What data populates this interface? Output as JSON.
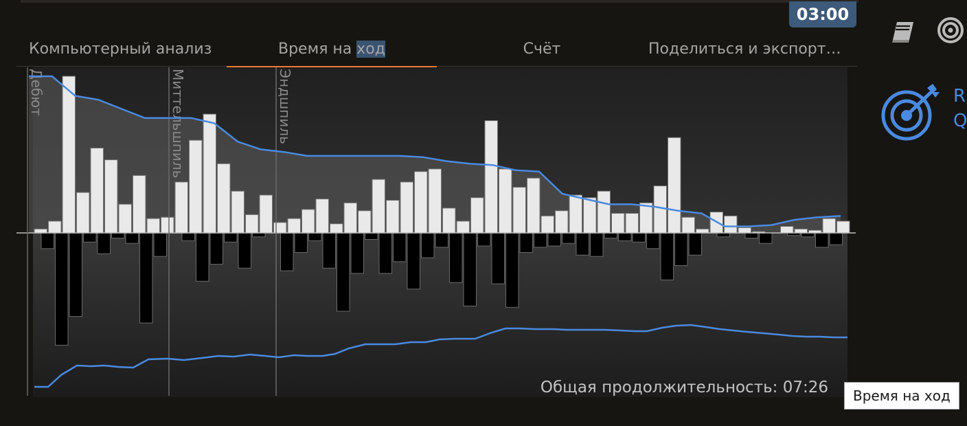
{
  "clock": "03:00",
  "tabs": {
    "computer_analysis": "Компьютерный анализ",
    "move_time_prefix": "Время на ",
    "move_time_highlight": "ход",
    "score": "Счёт",
    "share": "Поделиться и экспортировать"
  },
  "phases": [
    "Дебют",
    "Миттельшпиль",
    "Эндшпиль"
  ],
  "total_duration": "Общая продолжительность: 07:26",
  "tooltip": "Время на ход",
  "right_rail": {
    "line1": "R",
    "line2": "Q"
  },
  "colors": {
    "accent": "#ea7a2c",
    "clock_bg": "#3d5a7a",
    "line": "#4a8ae0",
    "white_bar": "#e9e9e9",
    "black_bar": "#000000"
  },
  "chart_data": {
    "type": "bar",
    "description_note": "",
    "white_bars": [
      0.3,
      0.9,
      12,
      3.1,
      6.5,
      5.6,
      2.2,
      4.4,
      1.1,
      1.2,
      3.9,
      7.1,
      9.1,
      5.3,
      3.2,
      1.4,
      2.9,
      0.8,
      1.1,
      1.8,
      2.6,
      0.7,
      2.3,
      1.7,
      4.1,
      2.5,
      3.9,
      4.7,
      4.9,
      1.9,
      0.9,
      2.7,
      8.6,
      4.9,
      3.5,
      4.2,
      1.3,
      1.7,
      2.9,
      2.7,
      3.2,
      1.5,
      1.5,
      2.3,
      3.6,
      7.3,
      1.2,
      0.3,
      1.6,
      1.3,
      0.4,
      0.1,
      0,
      0.5,
      0.3,
      0.2,
      1.1,
      0.9
    ],
    "black_bars": [
      1.2,
      8.6,
      6.4,
      0.7,
      1.6,
      0.4,
      0.8,
      6.9,
      1.8,
      0,
      0.6,
      3.7,
      2.4,
      0.7,
      2.7,
      0.3,
      0,
      2.9,
      1.5,
      0.6,
      2.7,
      6,
      3.1,
      0.5,
      3.1,
      2.2,
      4.3,
      1.9,
      1.1,
      3.8,
      5.6,
      1,
      3.9,
      5.7,
      1.5,
      1.1,
      1,
      0.8,
      1.7,
      1.8,
      0.4,
      0.6,
      0.7,
      1.2,
      3.6,
      2.5,
      1.7,
      0,
      0.3,
      0,
      0.4,
      0.8,
      0,
      0.2,
      0.3,
      1.1,
      0.9
    ],
    "white_time_line": [
      12,
      12,
      10.5,
      10.2,
      9.5,
      8.8,
      8.8,
      8.8,
      8.4,
      7,
      6.4,
      6.2,
      5.9,
      5.9,
      5.9,
      5.9,
      5.9,
      5.8,
      5.5,
      5.3,
      5.2,
      4.8,
      4.7,
      3,
      2.6,
      2.2,
      2.2,
      2,
      1.7,
      1.5,
      0.5,
      0.5,
      0.6,
      1,
      1.2,
      1.3
    ]
  }
}
